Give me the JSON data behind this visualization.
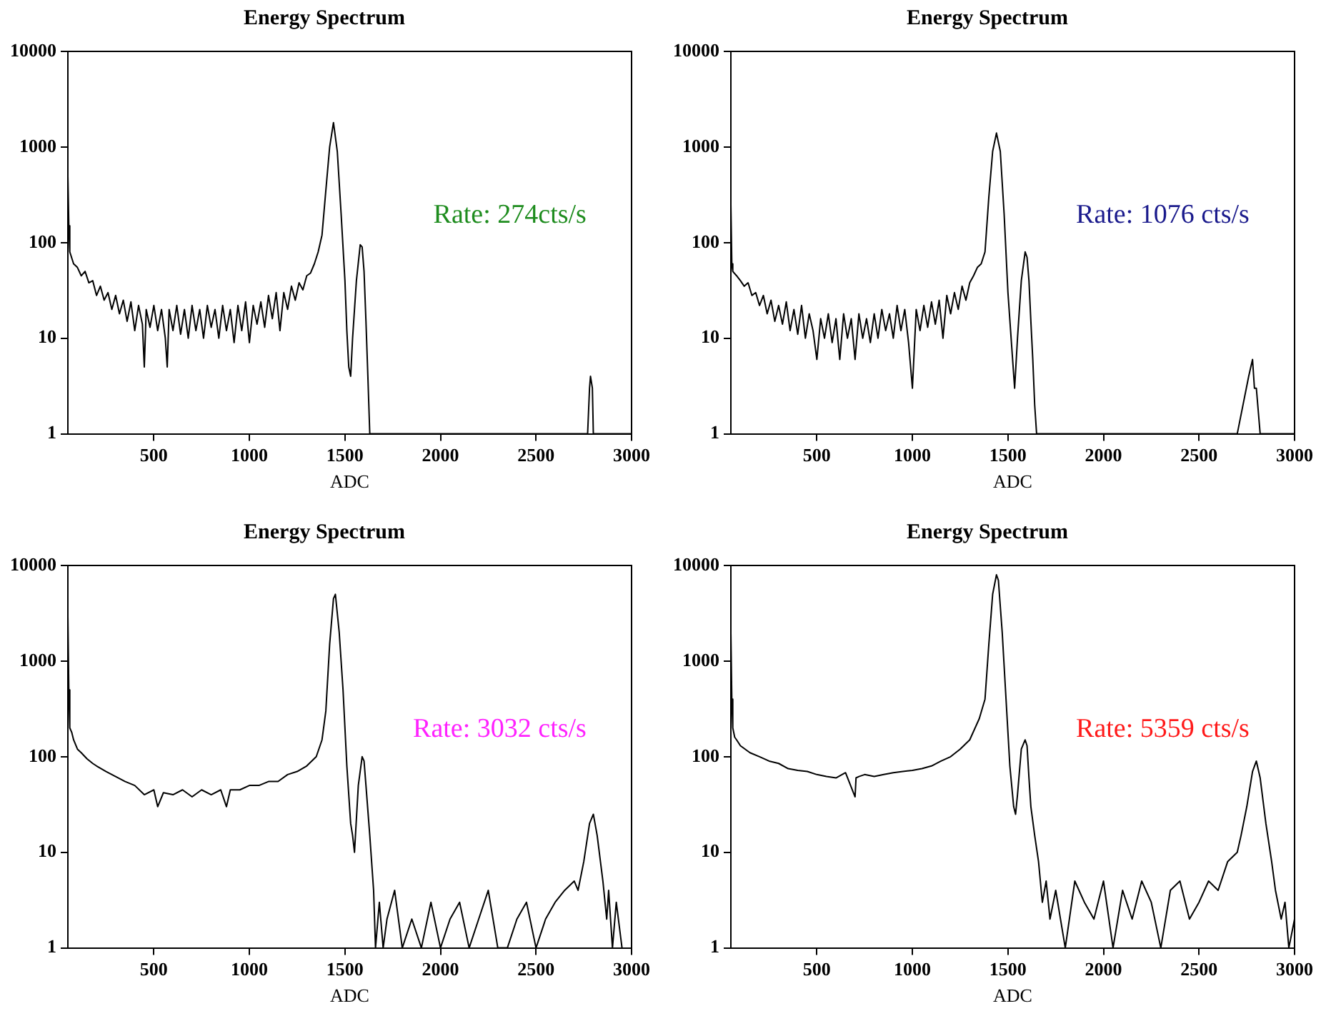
{
  "chart_data": [
    {
      "type": "line",
      "title": "Energy Spectrum",
      "xlabel": "ADC",
      "xlim": [
        50,
        3000
      ],
      "ylim": [
        1,
        10000
      ],
      "xticks": [
        500,
        1000,
        1500,
        2000,
        2500,
        3000
      ],
      "yticks": [
        1,
        10,
        100,
        1000,
        10000
      ],
      "log": "y",
      "annotations": [
        "Rate: 274cts/s"
      ],
      "x": [
        50,
        55,
        60,
        80,
        100,
        120,
        140,
        160,
        180,
        200,
        220,
        240,
        260,
        280,
        300,
        320,
        340,
        360,
        380,
        400,
        420,
        440,
        450,
        460,
        480,
        500,
        520,
        540,
        560,
        570,
        580,
        600,
        620,
        640,
        660,
        680,
        700,
        720,
        740,
        760,
        780,
        800,
        820,
        840,
        860,
        880,
        900,
        920,
        940,
        960,
        980,
        1000,
        1020,
        1040,
        1060,
        1080,
        1100,
        1120,
        1140,
        1160,
        1180,
        1200,
        1220,
        1240,
        1260,
        1280,
        1300,
        1320,
        1340,
        1360,
        1380,
        1400,
        1420,
        1440,
        1460,
        1480,
        1500,
        1510,
        1520,
        1530,
        1540,
        1560,
        1580,
        1590,
        1600,
        1610,
        1620,
        1630,
        2770,
        2780,
        2785,
        2795,
        2800,
        3000
      ],
      "series": [
        {
          "color": "#000000",
          "values": [
            500,
            150,
            80,
            60,
            55,
            45,
            50,
            38,
            40,
            28,
            35,
            25,
            30,
            20,
            28,
            18,
            25,
            15,
            24,
            12,
            22,
            14,
            5,
            20,
            13,
            22,
            12,
            20,
            10,
            5,
            20,
            12,
            22,
            11,
            20,
            10,
            22,
            12,
            20,
            10,
            22,
            13,
            20,
            10,
            22,
            12,
            20,
            9,
            22,
            12,
            24,
            9,
            22,
            14,
            24,
            13,
            28,
            16,
            30,
            12,
            30,
            20,
            35,
            25,
            38,
            32,
            45,
            48,
            60,
            80,
            120,
            350,
            1000,
            1800,
            900,
            200,
            40,
            12,
            5,
            4,
            10,
            40,
            95,
            90,
            50,
            15,
            4,
            1,
            1,
            3,
            4,
            3,
            1,
            1
          ]
        }
      ]
    },
    {
      "type": "line",
      "title": "Energy Spectrum",
      "xlabel": "ADC",
      "xlim": [
        50,
        3000
      ],
      "ylim": [
        1,
        10000
      ],
      "xticks": [
        500,
        1000,
        1500,
        2000,
        2500,
        3000
      ],
      "yticks": [
        1,
        10,
        100,
        1000,
        10000
      ],
      "log": "y",
      "annotations": [
        "Rate: 1076 cts/s"
      ],
      "x": [
        50,
        55,
        60,
        80,
        100,
        120,
        140,
        160,
        180,
        200,
        220,
        240,
        260,
        280,
        300,
        320,
        340,
        360,
        380,
        400,
        420,
        440,
        460,
        480,
        500,
        520,
        540,
        560,
        580,
        600,
        620,
        640,
        660,
        680,
        700,
        720,
        740,
        760,
        780,
        800,
        820,
        840,
        860,
        880,
        900,
        920,
        940,
        960,
        980,
        1000,
        1020,
        1040,
        1060,
        1080,
        1100,
        1120,
        1140,
        1160,
        1180,
        1200,
        1220,
        1240,
        1260,
        1280,
        1300,
        1320,
        1340,
        1360,
        1380,
        1400,
        1420,
        1440,
        1460,
        1480,
        1500,
        1520,
        1535,
        1550,
        1570,
        1590,
        1600,
        1610,
        1620,
        1630,
        1640,
        1650,
        2700,
        2760,
        2780,
        2790,
        2800,
        2820,
        3000
      ],
      "series": [
        {
          "color": "#000000",
          "values": [
            250,
            60,
            50,
            45,
            40,
            35,
            38,
            28,
            30,
            22,
            28,
            18,
            25,
            15,
            22,
            14,
            24,
            12,
            20,
            11,
            22,
            10,
            18,
            12,
            6,
            16,
            10,
            18,
            9,
            16,
            6,
            18,
            10,
            16,
            6,
            18,
            10,
            16,
            9,
            18,
            10,
            20,
            12,
            18,
            10,
            22,
            12,
            20,
            9,
            3,
            20,
            12,
            22,
            13,
            24,
            14,
            25,
            10,
            28,
            18,
            30,
            20,
            35,
            25,
            38,
            45,
            55,
            60,
            80,
            300,
            900,
            1400,
            900,
            200,
            30,
            8,
            3,
            10,
            40,
            80,
            70,
            40,
            15,
            6,
            2,
            1,
            1,
            4,
            6,
            3,
            3,
            1,
            1
          ]
        }
      ]
    },
    {
      "type": "line",
      "title": "Energy Spectrum",
      "xlabel": "ADC",
      "xlim": [
        50,
        3000
      ],
      "ylim": [
        1,
        10000
      ],
      "xticks": [
        500,
        1000,
        1500,
        2000,
        2500,
        3000
      ],
      "yticks": [
        1,
        10,
        100,
        1000,
        10000
      ],
      "log": "y",
      "annotations": [
        "Rate: 3032 cts/s"
      ],
      "x": [
        50,
        55,
        60,
        70,
        80,
        100,
        120,
        150,
        180,
        200,
        250,
        300,
        350,
        400,
        450,
        500,
        520,
        550,
        600,
        650,
        700,
        750,
        800,
        850,
        880,
        900,
        950,
        1000,
        1050,
        1100,
        1150,
        1200,
        1250,
        1300,
        1350,
        1380,
        1400,
        1420,
        1440,
        1450,
        1470,
        1490,
        1510,
        1530,
        1540,
        1550,
        1570,
        1590,
        1600,
        1610,
        1630,
        1650,
        1660,
        1680,
        1700,
        1720,
        1760,
        1800,
        1850,
        1900,
        1950,
        2000,
        2050,
        2100,
        2150,
        2200,
        2250,
        2300,
        2350,
        2400,
        2450,
        2500,
        2550,
        2600,
        2650,
        2700,
        2720,
        2750,
        2780,
        2800,
        2820,
        2850,
        2870,
        2880,
        2900,
        2920,
        2950
      ],
      "series": [
        {
          "color": "#000000",
          "values": [
            3000,
            500,
            200,
            180,
            150,
            120,
            110,
            95,
            85,
            80,
            70,
            62,
            55,
            50,
            40,
            45,
            30,
            42,
            40,
            45,
            38,
            45,
            40,
            45,
            30,
            45,
            45,
            50,
            50,
            55,
            55,
            65,
            70,
            80,
            100,
            150,
            300,
            1500,
            4500,
            5000,
            2000,
            500,
            80,
            20,
            15,
            10,
            50,
            100,
            90,
            50,
            15,
            4,
            1,
            3,
            1,
            2,
            4,
            1,
            2,
            1,
            3,
            1,
            2,
            3,
            1,
            2,
            4,
            1,
            1,
            2,
            3,
            1,
            2,
            3,
            4,
            5,
            4,
            8,
            20,
            25,
            15,
            5,
            2,
            4,
            1,
            3,
            1
          ]
        }
      ]
    },
    {
      "type": "line",
      "title": "Energy Spectrum",
      "xlabel": "ADC",
      "xlim": [
        50,
        3000
      ],
      "ylim": [
        1,
        10000
      ],
      "xticks": [
        500,
        1000,
        1500,
        2000,
        2500,
        3000
      ],
      "yticks": [
        1,
        10,
        100,
        1000,
        10000
      ],
      "log": "y",
      "annotations": [
        "Rate: 5359 cts/s"
      ],
      "x": [
        50,
        55,
        60,
        70,
        80,
        100,
        150,
        200,
        250,
        300,
        350,
        400,
        450,
        500,
        550,
        600,
        650,
        700,
        705,
        720,
        750,
        800,
        850,
        900,
        950,
        1000,
        1050,
        1100,
        1150,
        1200,
        1250,
        1300,
        1350,
        1380,
        1400,
        1420,
        1440,
        1450,
        1470,
        1490,
        1510,
        1530,
        1540,
        1550,
        1570,
        1590,
        1600,
        1610,
        1620,
        1640,
        1660,
        1680,
        1700,
        1720,
        1750,
        1800,
        1850,
        1900,
        1950,
        2000,
        2050,
        2100,
        2150,
        2200,
        2250,
        2300,
        2350,
        2400,
        2450,
        2500,
        2550,
        2600,
        2650,
        2700,
        2720,
        2750,
        2780,
        2800,
        2820,
        2850,
        2880,
        2900,
        2930,
        2950,
        2970,
        3000
      ],
      "series": [
        {
          "color": "#000000",
          "values": [
            2000,
            400,
            200,
            160,
            150,
            130,
            110,
            100,
            90,
            85,
            75,
            72,
            70,
            65,
            62,
            60,
            68,
            38,
            60,
            62,
            65,
            62,
            65,
            68,
            70,
            72,
            75,
            80,
            90,
            100,
            120,
            150,
            250,
            400,
            1500,
            5000,
            8000,
            7000,
            2000,
            400,
            80,
            30,
            25,
            40,
            120,
            150,
            130,
            60,
            30,
            15,
            8,
            3,
            5,
            2,
            4,
            1,
            5,
            3,
            2,
            5,
            1,
            4,
            2,
            5,
            3,
            1,
            4,
            5,
            2,
            3,
            5,
            4,
            8,
            10,
            15,
            30,
            70,
            90,
            60,
            20,
            8,
            4,
            2,
            3,
            1,
            2
          ]
        }
      ]
    }
  ]
}
